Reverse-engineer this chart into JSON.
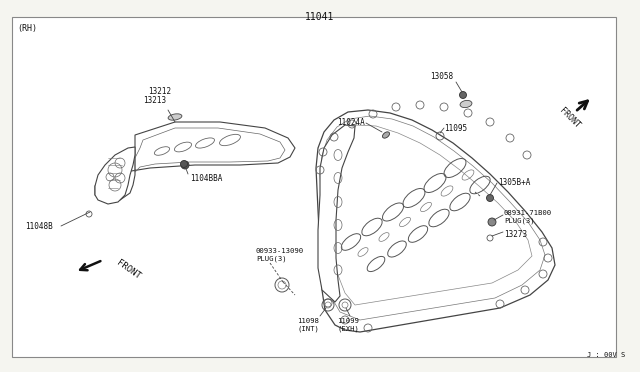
{
  "title": "11041",
  "bg": "#f5f5f0",
  "fg": "#111111",
  "lc": "#444444",
  "lw": 0.7,
  "labels": {
    "rh": "(RH)",
    "part_11041": "11041",
    "part_13212": "13212",
    "part_13213": "13213",
    "part_11048B": "11048B",
    "part_1104BBA": "1104BBA",
    "part_13058": "13058",
    "part_11024A": "11024A",
    "part_11095": "11095",
    "part_1305B_A": "1305B+A",
    "part_08931": "08931-71B00\nPLUG(3)",
    "part_13273": "13273",
    "part_00933": "00933-13090\nPLUG(3)",
    "part_11098": "11098\n(INT)",
    "part_11099": "11099\n(EXH)",
    "front_lh": "FRONT",
    "front_rh": "FRONT",
    "watermark": "J : 00V S"
  },
  "fig_width": 6.4,
  "fig_height": 3.72,
  "dpi": 100
}
